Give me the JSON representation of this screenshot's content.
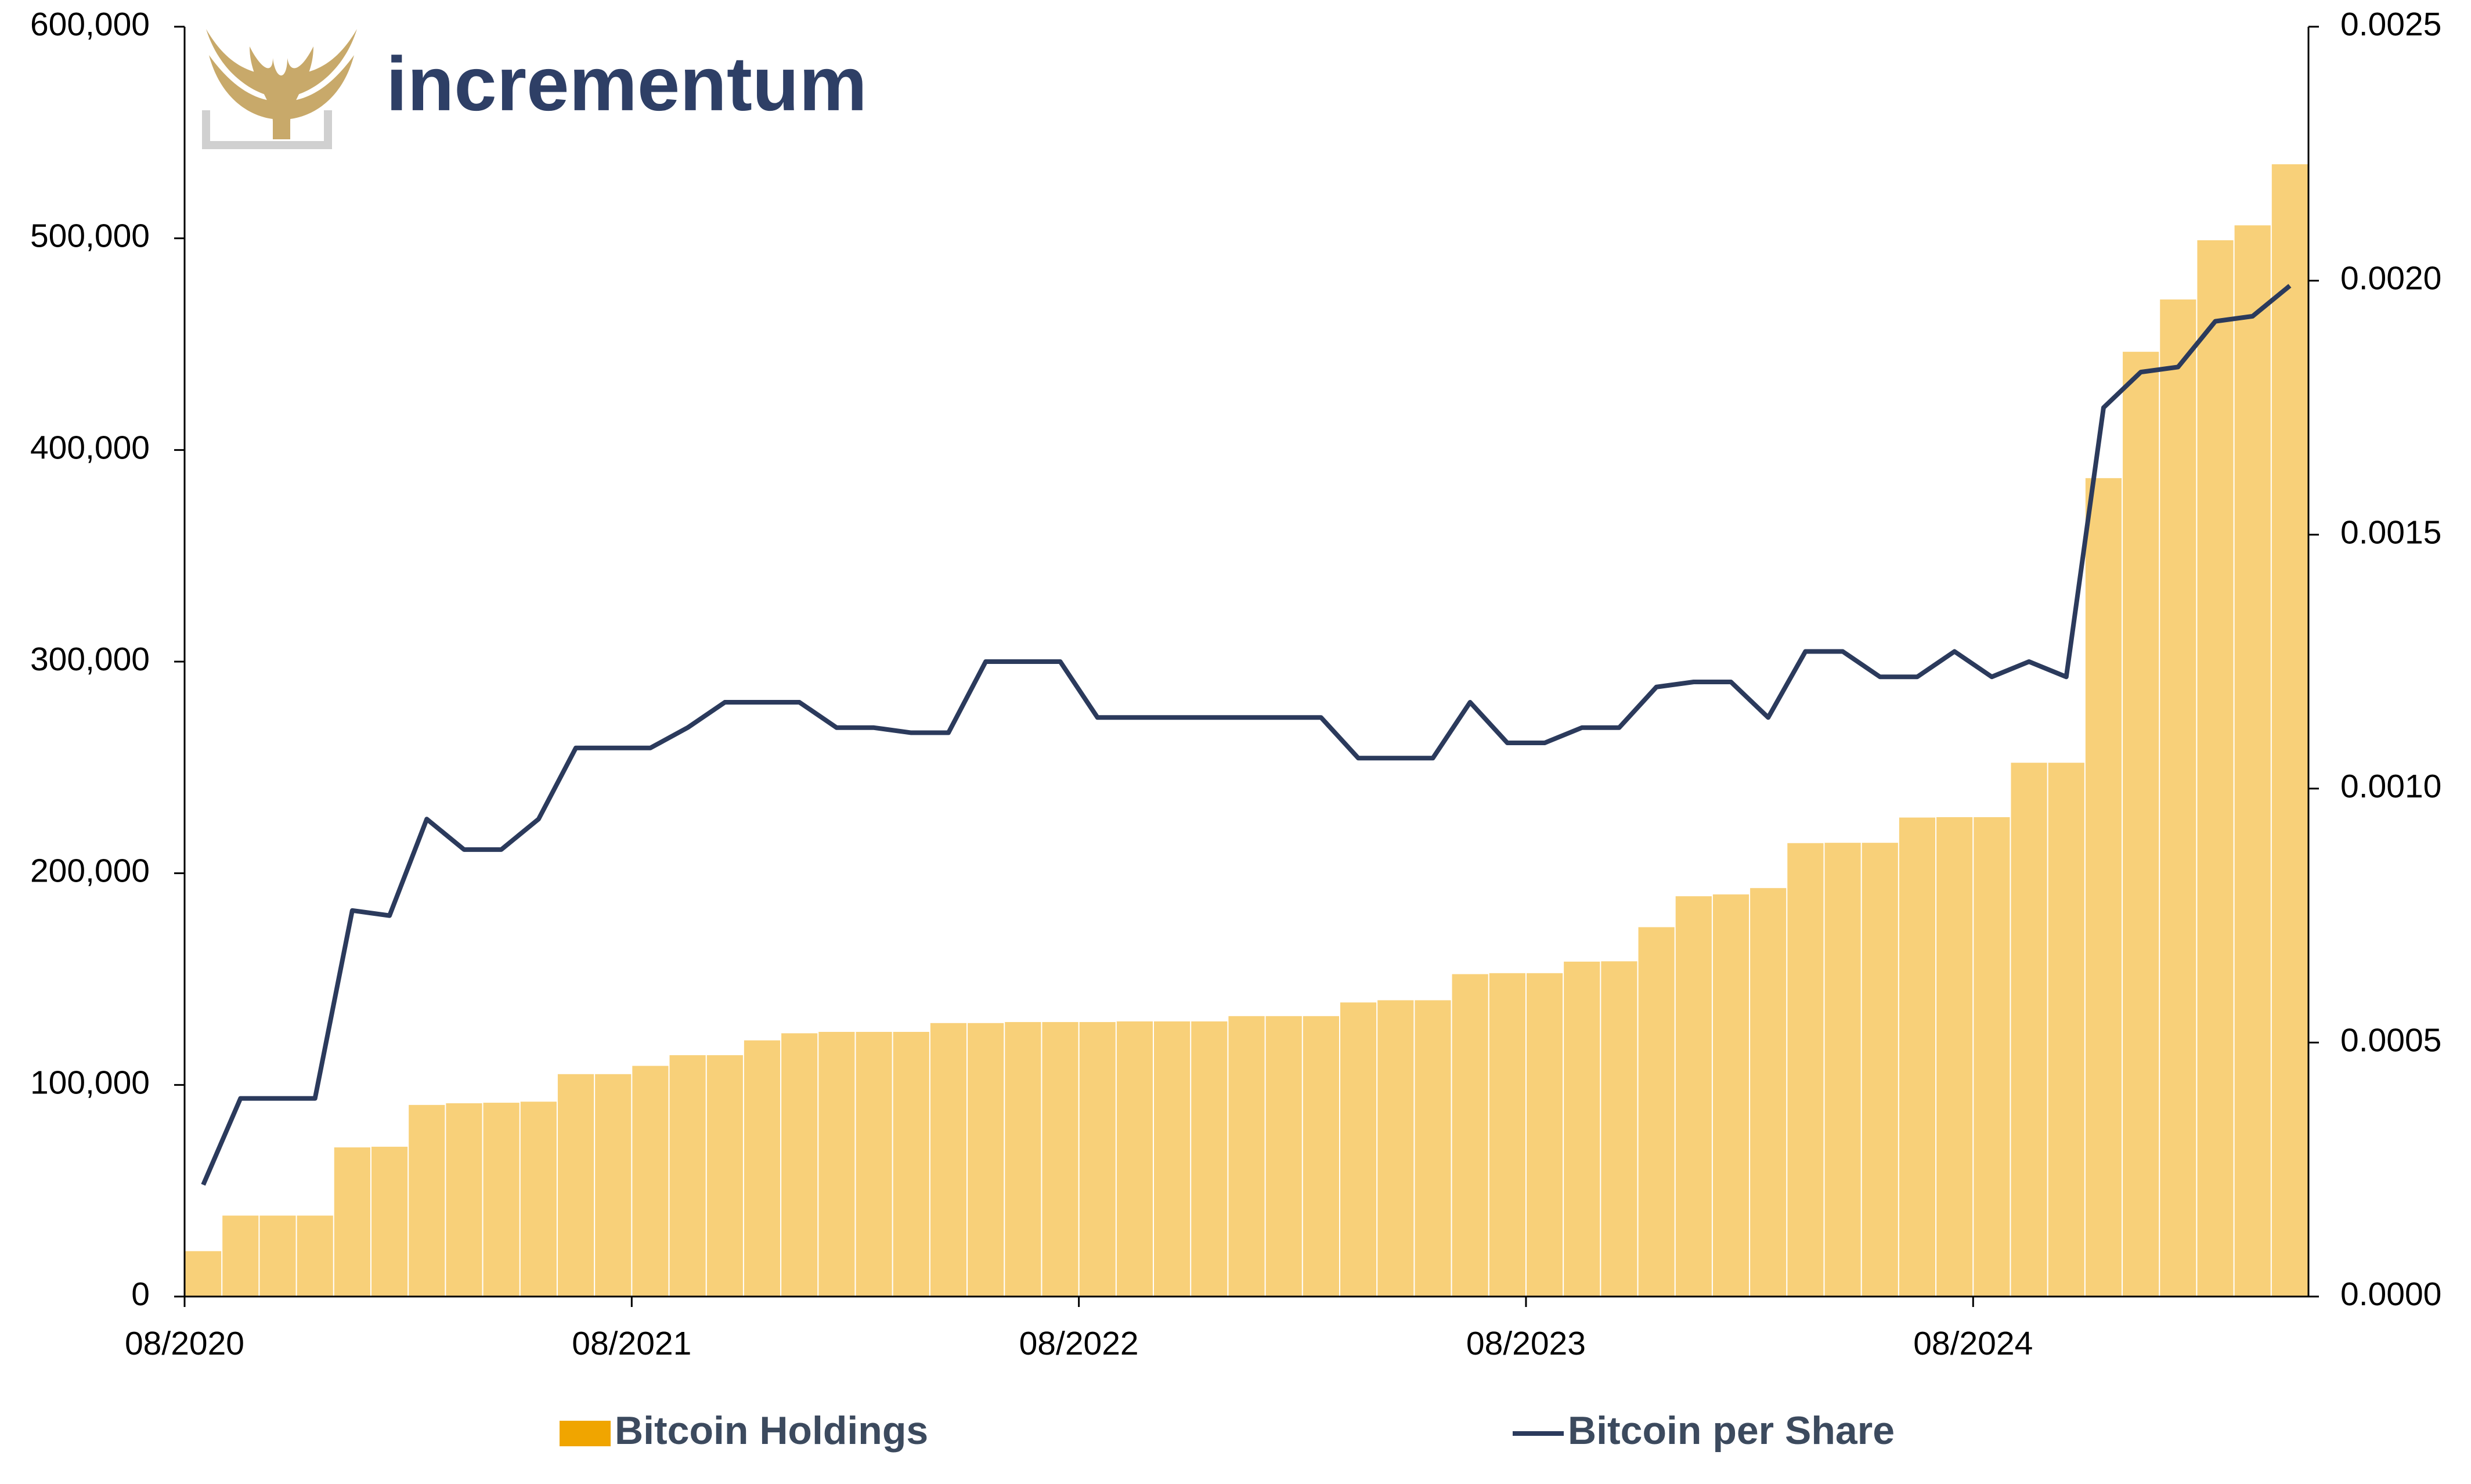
{
  "logo": "incrementum",
  "chart_data": {
    "type": "bar-line",
    "categories": [
      "08/2020",
      null,
      null,
      null,
      null,
      null,
      null,
      null,
      null,
      null,
      null,
      null,
      "08/2021",
      null,
      null,
      null,
      null,
      null,
      null,
      null,
      null,
      null,
      null,
      null,
      "08/2022",
      null,
      null,
      null,
      null,
      null,
      null,
      null,
      null,
      null,
      null,
      null,
      "08/2023",
      null,
      null,
      null,
      null,
      null,
      null,
      null,
      null,
      null,
      null,
      null,
      "08/2024",
      null,
      null,
      null,
      null,
      null,
      null,
      null,
      null
    ],
    "series": [
      {
        "name": "Bitcoin Holdings",
        "type": "bar",
        "color": "#f7c862",
        "legend_color": "#f0a500",
        "values": [
          21454,
          38250,
          38250,
          38250,
          70470,
          70784,
          90531,
          91326,
          91579,
          92079,
          105085,
          105085,
          108992,
          114042,
          114042,
          121044,
          124391,
          125051,
          125051,
          125051,
          129218,
          129218,
          129699,
          129699,
          129699,
          130000,
          130000,
          130000,
          132500,
          132500,
          132500,
          138955,
          140000,
          140000,
          152333,
          152800,
          152800,
          158245,
          158400,
          174530,
          189150,
          190000,
          193000,
          214246,
          214400,
          214400,
          226331,
          226500,
          226500,
          252220,
          252220,
          386700,
          446400,
          471107,
          499096,
          506137,
          535000
        ]
      },
      {
        "name": "Bitcoin per Share",
        "type": "line",
        "axis": "y2",
        "color": "#2b3a5c",
        "values": [
          0.00022,
          0.00039,
          0.00039,
          0.00039,
          0.00076,
          0.00075,
          0.00094,
          0.00088,
          0.00088,
          0.00094,
          0.00108,
          0.00108,
          0.00108,
          0.00112,
          0.00117,
          0.00117,
          0.00117,
          0.00112,
          0.00112,
          0.00111,
          0.00111,
          0.00125,
          0.00125,
          0.00125,
          0.00114,
          0.00114,
          0.00114,
          0.00114,
          0.00114,
          0.00114,
          0.00114,
          0.00106,
          0.00106,
          0.00106,
          0.00117,
          0.00109,
          0.00109,
          0.00112,
          0.00112,
          0.0012,
          0.00121,
          0.00121,
          0.00114,
          0.00127,
          0.00127,
          0.00122,
          0.00122,
          0.00127,
          0.00122,
          0.00125,
          0.00122,
          0.00175,
          0.00182,
          0.00183,
          0.00192,
          0.00193,
          0.00199
        ]
      }
    ],
    "ylim": [
      0,
      600000
    ],
    "yticks": [
      0,
      {
        "value": 100000,
        "label": "100,000"
      },
      {
        "value": 200000,
        "label": "200,000"
      },
      {
        "value": 300000,
        "label": "300,000"
      },
      {
        "value": 400000,
        "label": "400,000"
      },
      {
        "value": 500000,
        "label": "500,000"
      },
      {
        "value": 600000,
        "label": "600,000"
      }
    ],
    "y2lim": [
      0,
      0.0025
    ],
    "y2ticks": [
      {
        "value": 0,
        "label": "0.0000"
      },
      {
        "value": 0.0005,
        "label": "0.0005"
      },
      {
        "value": 0.001,
        "label": "0.0010"
      },
      {
        "value": 0.0015,
        "label": "0.0015"
      },
      {
        "value": 0.002,
        "label": "0.0020"
      },
      {
        "value": 0.0025,
        "label": "0.0025"
      }
    ],
    "grid": false,
    "legend": "bottom"
  }
}
